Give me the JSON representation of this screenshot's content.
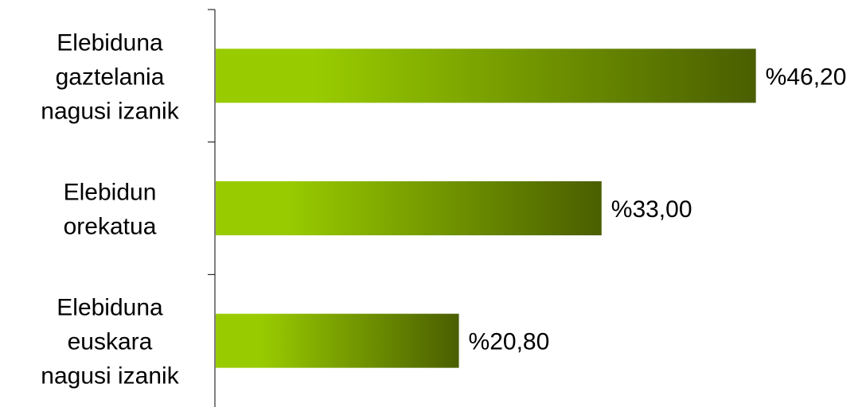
{
  "chart_data": {
    "type": "bar",
    "orientation": "horizontal",
    "categories": [
      [
        "Elebiduna",
        "gaztelania",
        "nagusi izanik"
      ],
      [
        "Elebidun",
        "orekatua"
      ],
      [
        "Elebiduna",
        "euskara",
        "nagusi izanik"
      ]
    ],
    "values": [
      46.2,
      33.0,
      20.8
    ],
    "value_labels": [
      "%46,20",
      "%33,00",
      "%20,80"
    ],
    "xlim": [
      0,
      50
    ],
    "grid": false,
    "legend": "none",
    "colors": {
      "bar_light": "#99cc00",
      "bar_dark": "#4a5e00",
      "axis": "#000000",
      "text": "#000000"
    }
  }
}
